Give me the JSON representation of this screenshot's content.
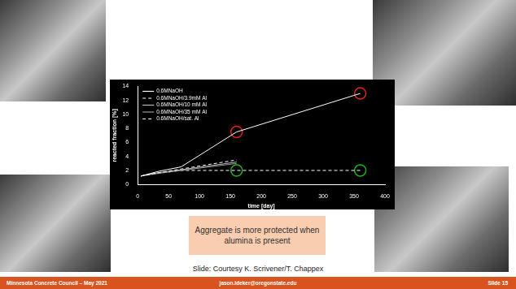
{
  "chart_data": {
    "type": "line",
    "x_label": "time [day]",
    "y_label": "reacted fraction [%]",
    "xlim": [
      0,
      400
    ],
    "xticks": [
      0,
      50,
      100,
      150,
      200,
      250,
      300,
      350,
      400
    ],
    "ylim": [
      0,
      14
    ],
    "yticks": [
      0,
      2,
      4,
      6,
      8,
      10,
      12,
      14
    ],
    "grid": false,
    "legend": "upper left",
    "series": [
      {
        "name": "0.6MNaOH",
        "color": "#ffffff",
        "line_style": "solid",
        "x": [
          5,
          35,
          70,
          160,
          360
        ],
        "values": [
          1.2,
          1.9,
          2.5,
          7.5,
          13.0
        ]
      },
      {
        "name": "0.6MNaOH/3.9mM Al",
        "color": "#ffffff",
        "line_style": "dashed",
        "x": [
          5,
          35,
          70,
          160
        ],
        "values": [
          1.2,
          1.7,
          2.2,
          3.5
        ]
      },
      {
        "name": "0.6MNaOH/10 mM Al",
        "color": "#bbbbbb",
        "line_style": "solid",
        "x": [
          5,
          35,
          70,
          160
        ],
        "values": [
          1.2,
          1.7,
          2.1,
          3.2
        ]
      },
      {
        "name": "0.6MNaOH/35 mM Al",
        "color": "#999999",
        "line_style": "solid",
        "x": [
          5,
          35,
          70,
          160
        ],
        "values": [
          1.2,
          1.6,
          2.0,
          3.0
        ]
      },
      {
        "name": "0.6MNaOH/sat. Al",
        "color": "#ffffff",
        "line_style": "dashed",
        "x": [
          5,
          35,
          70,
          160,
          360
        ],
        "values": [
          1.2,
          1.6,
          2.0,
          2.0,
          2.0
        ]
      }
    ],
    "highlights": [
      {
        "x": 160,
        "y": 7.5,
        "color": "#e02020"
      },
      {
        "x": 360,
        "y": 13.0,
        "color": "#e02020"
      },
      {
        "x": 160,
        "y": 2.0,
        "color": "#20b020"
      },
      {
        "x": 360,
        "y": 2.0,
        "color": "#20b020"
      }
    ]
  },
  "slide": {
    "callout": "Aggregate is more protected when alumina is present",
    "credit": "Slide: Courtesy K. Scrivener/T. Chappex",
    "footer": [
      "Minnesota Concrete Council – May 2021",
      "jason.ideker@oregonstate.edu",
      "Slide 15"
    ]
  }
}
